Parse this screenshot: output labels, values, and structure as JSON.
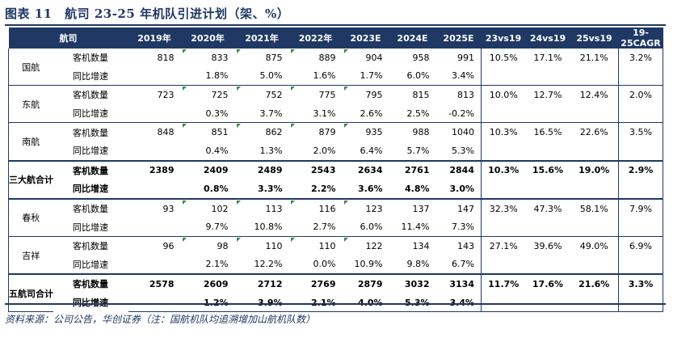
{
  "title": "图表 11　航司 23-25 年机队引进计划（架、%）",
  "headers": [
    "航司",
    "2019年",
    "2020年",
    "2021年",
    "2022年",
    "2023E",
    "2024E",
    "2025E",
    "23vs19",
    "24vs19",
    "25vs19",
    "19-25CAGR"
  ],
  "rows": [
    {
      "group": "国航",
      "label": "客机数量",
      "cells": [
        "818",
        "833",
        "875",
        "889",
        "904",
        "958",
        "991",
        "10.5%",
        "17.1%",
        "21.1%",
        "3.2%"
      ]
    },
    {
      "group": "",
      "label": "同比增速",
      "cells": [
        "",
        "1.8%",
        "5.0%",
        "1.6%",
        "1.7%",
        "6.0%",
        "3.4%",
        "",
        "",
        "",
        ""
      ]
    },
    {
      "group": "东航",
      "label": "客机数量",
      "cells": [
        "723",
        "725",
        "752",
        "775",
        "795",
        "815",
        "813",
        "10.0%",
        "12.7%",
        "12.4%",
        "2.0%"
      ]
    },
    {
      "group": "",
      "label": "同比增速",
      "cells": [
        "",
        "0.3%",
        "3.7%",
        "3.1%",
        "2.6%",
        "2.5%",
        "-0.2%",
        "",
        "",
        "",
        ""
      ]
    },
    {
      "group": "南航",
      "label": "客机数量",
      "cells": [
        "848",
        "851",
        "862",
        "879",
        "935",
        "988",
        "1040",
        "10.3%",
        "16.5%",
        "22.6%",
        "3.5%"
      ]
    },
    {
      "group": "",
      "label": "同比增速",
      "cells": [
        "",
        "0.4%",
        "1.3%",
        "2.0%",
        "6.4%",
        "5.7%",
        "5.3%",
        "",
        "",
        "",
        ""
      ]
    },
    {
      "group": "三大航合计",
      "label": "客机数量",
      "cells": [
        "2389",
        "2409",
        "2489",
        "2543",
        "2634",
        "2761",
        "2844",
        "10.3%",
        "15.6%",
        "19.0%",
        "2.9%"
      ]
    },
    {
      "group": "",
      "label": "同比增速",
      "cells": [
        "",
        "0.8%",
        "3.3%",
        "2.2%",
        "3.6%",
        "4.8%",
        "3.0%",
        "",
        "",
        "",
        ""
      ]
    },
    {
      "group": "春秋",
      "label": "客机数量",
      "cells": [
        "93",
        "102",
        "113",
        "116",
        "123",
        "137",
        "147",
        "32.3%",
        "47.3%",
        "58.1%",
        "7.9%"
      ]
    },
    {
      "group": "",
      "label": "同比增速",
      "cells": [
        "",
        "9.7%",
        "10.8%",
        "2.7%",
        "6.0%",
        "11.4%",
        "7.3%",
        "",
        "",
        "",
        ""
      ]
    },
    {
      "group": "吉祥",
      "label": "客机数量",
      "cells": [
        "96",
        "98",
        "110",
        "110",
        "122",
        "134",
        "143",
        "27.1%",
        "39.6%",
        "49.0%",
        "6.9%"
      ]
    },
    {
      "group": "",
      "label": "同比增速",
      "cells": [
        "",
        "2.1%",
        "12.2%",
        "0.0%",
        "10.9%",
        "9.8%",
        "6.7%",
        "",
        "",
        "",
        ""
      ]
    },
    {
      "group": "五航司合计",
      "label": "客机数量",
      "cells": [
        "2578",
        "2609",
        "2712",
        "2769",
        "2879",
        "3032",
        "3134",
        "11.7%",
        "17.6%",
        "21.6%",
        "3.3%"
      ]
    },
    {
      "group": "",
      "label": "同比增速",
      "cells": [
        "",
        "1.2%",
        "3.9%",
        "2.1%",
        "4.0%",
        "5.3%",
        "3.4%",
        "",
        "",
        "",
        ""
      ]
    }
  ],
  "source": "资料来源：公司公告，华创证券（注：国航机队均追溯增加山航机队数）"
}
